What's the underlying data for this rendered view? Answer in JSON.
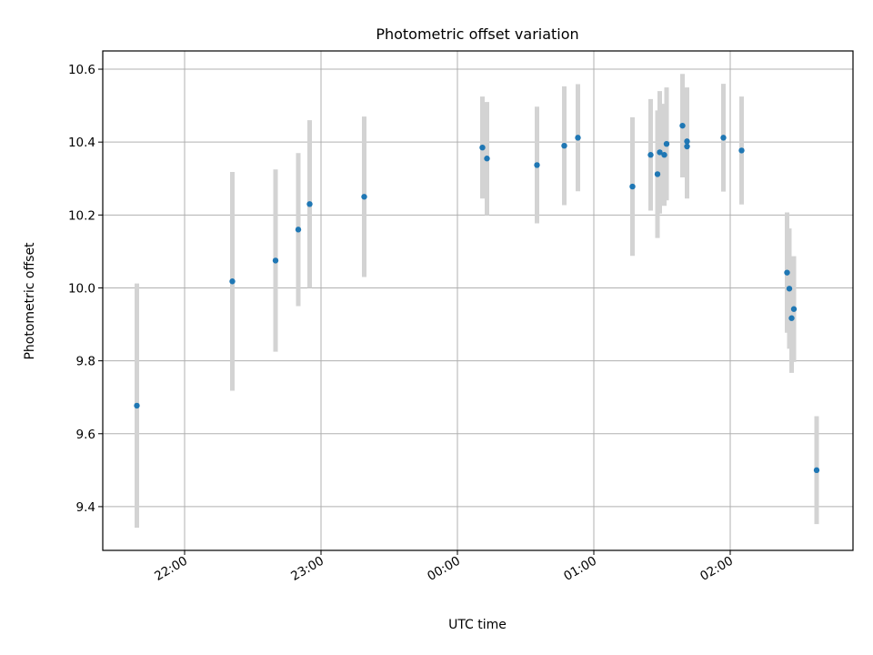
{
  "chart_data": {
    "type": "scatter",
    "title": "Photometric offset variation",
    "xlabel": "UTC time",
    "ylabel": "Photometric offset",
    "xlim": [
      "21:24",
      "02:54"
    ],
    "ylim": [
      9.28,
      10.65
    ],
    "grid": true,
    "x_ticks": [
      "22:00",
      "23:00",
      "00:00",
      "01:00",
      "02:00"
    ],
    "y_ticks": [
      "9.4",
      "9.6",
      "9.8",
      "10.0",
      "10.2",
      "10.4",
      "10.6"
    ],
    "colors": {
      "point": "#1f77b4",
      "errorbar": "#d3d3d3",
      "grid": "#b0b0b0"
    },
    "points": [
      {
        "x": "21:39",
        "y": 9.677,
        "err": 0.335
      },
      {
        "x": "22:21",
        "y": 10.018,
        "err": 0.3
      },
      {
        "x": "22:40",
        "y": 10.075,
        "err": 0.25
      },
      {
        "x": "22:50",
        "y": 10.16,
        "err": 0.21
      },
      {
        "x": "22:55",
        "y": 10.23,
        "err": 0.23
      },
      {
        "x": "23:19",
        "y": 10.25,
        "err": 0.22
      },
      {
        "x": "00:11",
        "y": 10.385,
        "err": 0.14
      },
      {
        "x": "00:13",
        "y": 10.355,
        "err": 0.155
      },
      {
        "x": "00:35",
        "y": 10.337,
        "err": 0.16
      },
      {
        "x": "00:47",
        "y": 10.39,
        "err": 0.163
      },
      {
        "x": "00:53",
        "y": 10.412,
        "err": 0.147
      },
      {
        "x": "01:17",
        "y": 10.278,
        "err": 0.19
      },
      {
        "x": "01:25",
        "y": 10.365,
        "err": 0.153
      },
      {
        "x": "01:28",
        "y": 10.312,
        "err": 0.175
      },
      {
        "x": "01:29",
        "y": 10.372,
        "err": 0.168
      },
      {
        "x": "01:31",
        "y": 10.365,
        "err": 0.14
      },
      {
        "x": "01:32",
        "y": 10.395,
        "err": 0.155
      },
      {
        "x": "01:39",
        "y": 10.445,
        "err": 0.142
      },
      {
        "x": "01:41",
        "y": 10.388,
        "err": 0.143
      },
      {
        "x": "01:41",
        "y": 10.402,
        "err": 0.148
      },
      {
        "x": "01:57",
        "y": 10.412,
        "err": 0.148
      },
      {
        "x": "02:05",
        "y": 10.377,
        "err": 0.148
      },
      {
        "x": "02:25",
        "y": 10.042,
        "err": 0.165
      },
      {
        "x": "02:26",
        "y": 9.998,
        "err": 0.165
      },
      {
        "x": "02:27",
        "y": 9.917,
        "err": 0.15
      },
      {
        "x": "02:28",
        "y": 9.942,
        "err": 0.145
      },
      {
        "x": "02:38",
        "y": 9.5,
        "err": 0.148
      }
    ]
  }
}
